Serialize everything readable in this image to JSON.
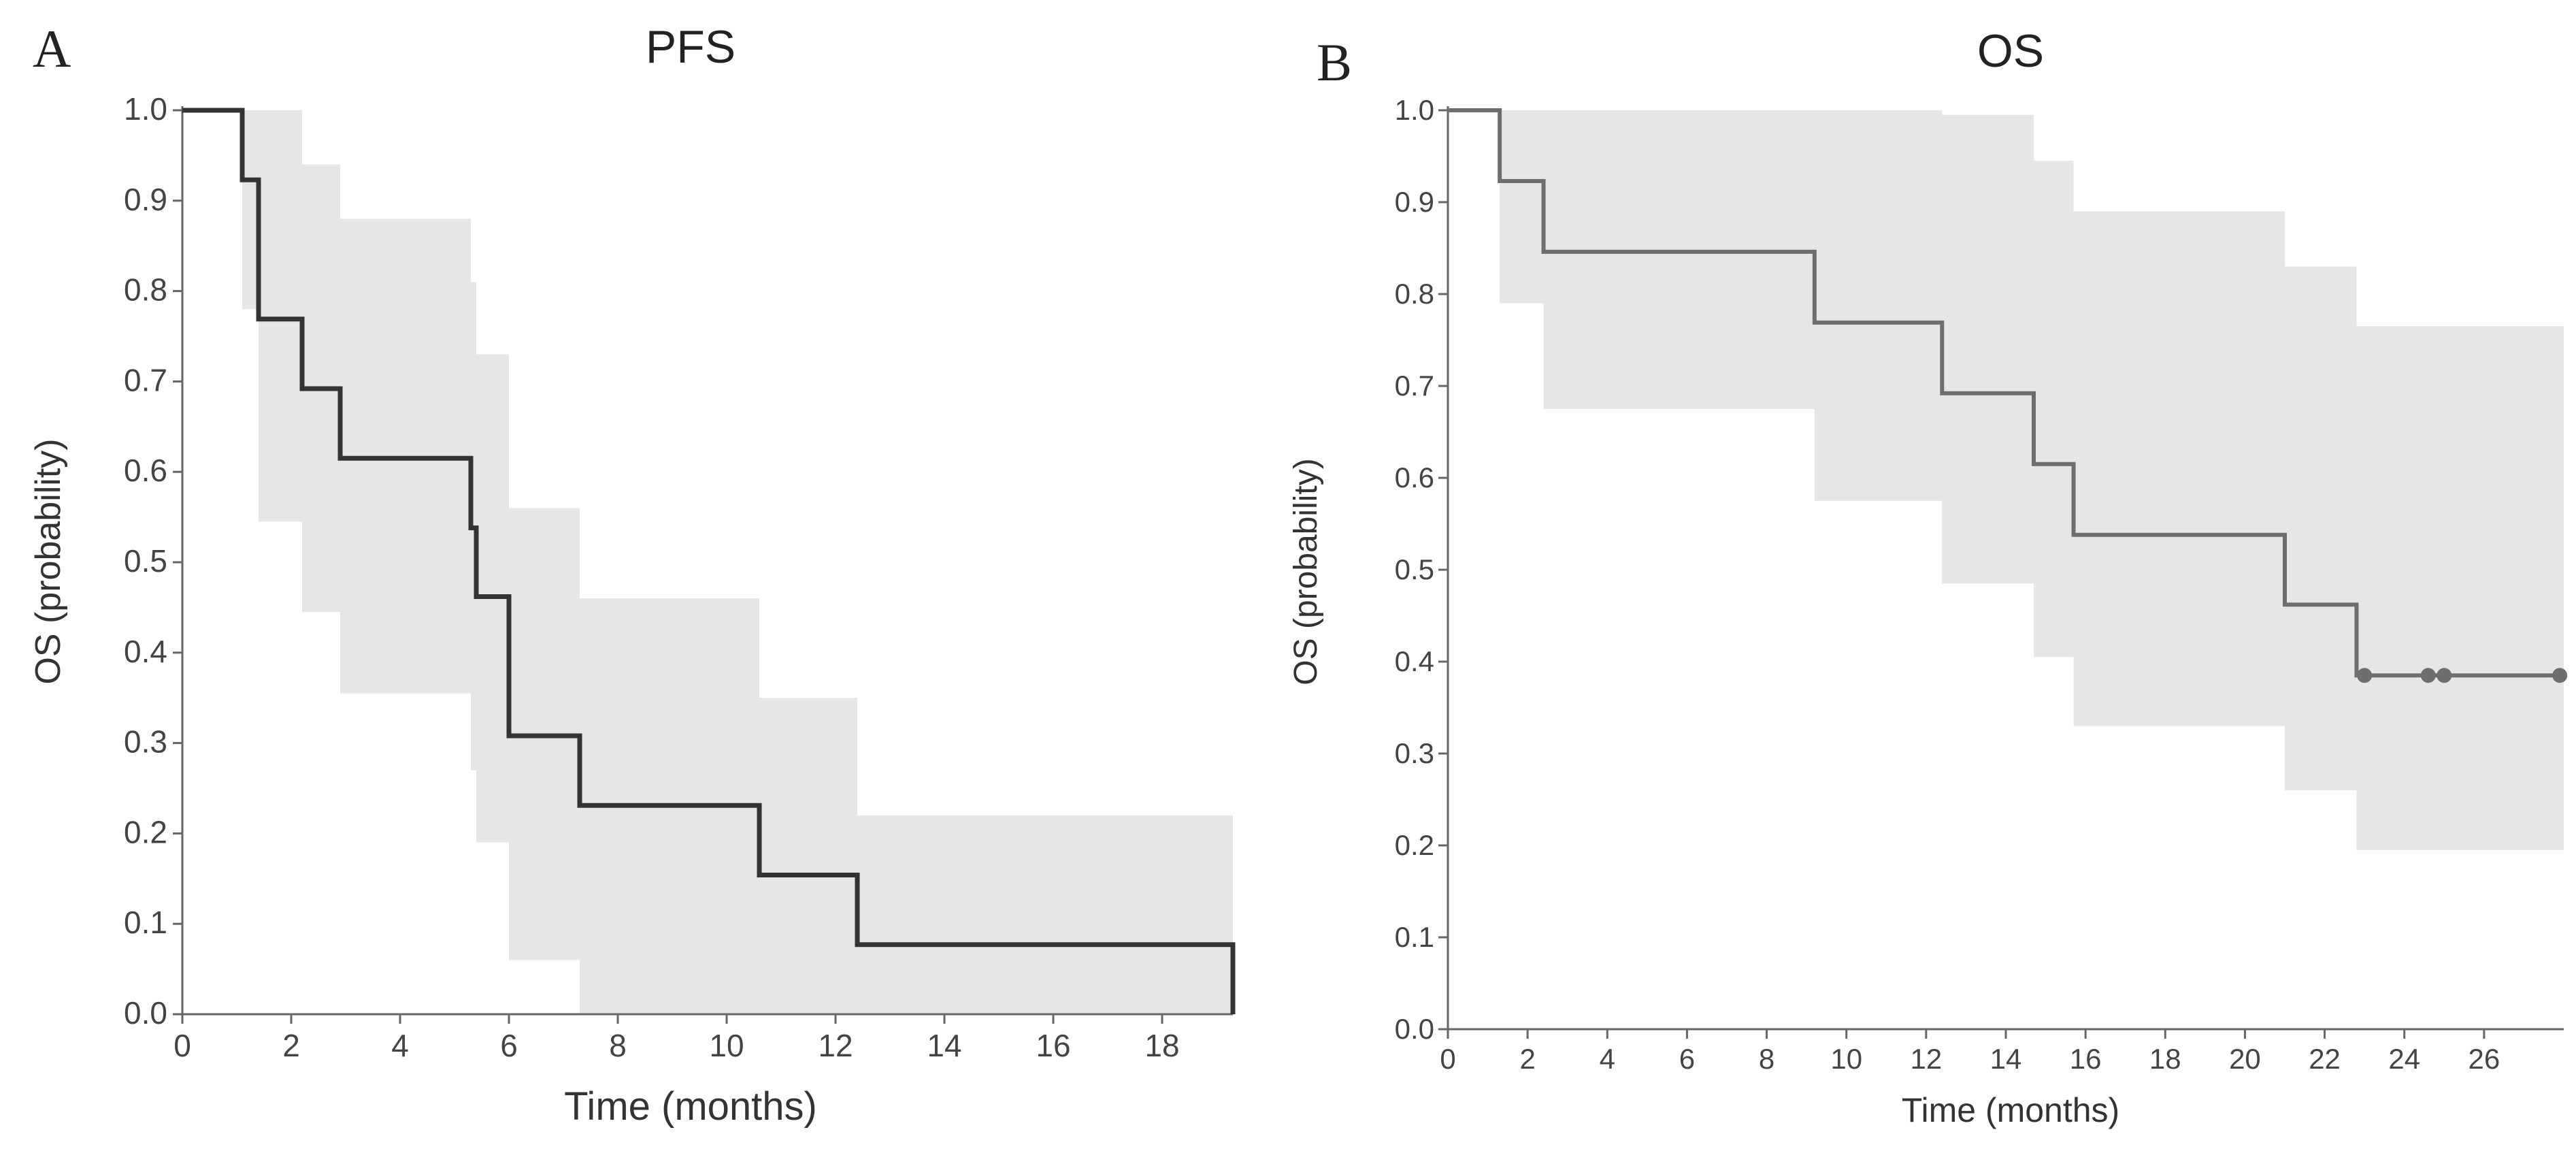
{
  "chart_data": [
    {
      "type": "line",
      "subtype": "kaplan-meier",
      "panel_label": "A",
      "title": "PFS",
      "xlabel": "Time (months)",
      "ylabel": "OS (probability)",
      "xlim": [
        0,
        19.3
      ],
      "ylim": [
        0,
        1.0
      ],
      "xticks": [
        0,
        2,
        4,
        6,
        8,
        10,
        12,
        14,
        16,
        18
      ],
      "xtick_labels": [
        "0",
        "2",
        "4",
        "6",
        "8",
        "10",
        "12",
        "14",
        "16",
        "18"
      ],
      "yticks": [
        0,
        0.1,
        0.2,
        0.3,
        0.4,
        0.5,
        0.6,
        0.7,
        0.8,
        0.9,
        1.0
      ],
      "ytick_labels": [
        "0.0",
        "0.1",
        "0.2",
        "0.3",
        "0.4",
        "0.5",
        "0.6",
        "0.7",
        "0.8",
        "0.9",
        "1.0"
      ],
      "grid": false,
      "line_color": "#333333",
      "band_color": "#e6e6e6",
      "survival": {
        "times": [
          0,
          1.1,
          1.4,
          2.2,
          2.9,
          5.3,
          5.4,
          6.0,
          7.3,
          10.6,
          12.4,
          19.3
        ],
        "values": [
          1.0,
          0.923,
          0.769,
          0.692,
          0.615,
          0.538,
          0.462,
          0.308,
          0.231,
          0.154,
          0.077,
          0.0
        ]
      },
      "ci": {
        "times": [
          0,
          1.1,
          1.4,
          2.2,
          2.9,
          5.3,
          5.4,
          6.0,
          7.3,
          10.6,
          12.4,
          19.3
        ],
        "upper": [
          1.0,
          1.0,
          1.0,
          0.94,
          0.88,
          0.81,
          0.73,
          0.56,
          0.46,
          0.35,
          0.22,
          0.22
        ],
        "lower": [
          1.0,
          0.78,
          0.545,
          0.445,
          0.355,
          0.27,
          0.19,
          0.06,
          0.0,
          0.0,
          0.0,
          0.0
        ]
      },
      "censored": {
        "times": [],
        "values": []
      }
    },
    {
      "type": "line",
      "subtype": "kaplan-meier",
      "panel_label": "B",
      "title": "OS",
      "xlabel": "Time (months)",
      "ylabel": "OS (probability)",
      "xlim": [
        0,
        28
      ],
      "ylim": [
        0,
        1.0
      ],
      "xticks": [
        0,
        2,
        4,
        6,
        8,
        10,
        12,
        14,
        16,
        18,
        20,
        22,
        24,
        26
      ],
      "xtick_labels": [
        "0",
        "2",
        "4",
        "6",
        "8",
        "10",
        "12",
        "14",
        "16",
        "18",
        "20",
        "22",
        "24",
        "26"
      ],
      "yticks": [
        0,
        0.1,
        0.2,
        0.3,
        0.4,
        0.5,
        0.6,
        0.7,
        0.8,
        0.9,
        1.0
      ],
      "ytick_labels": [
        "0.0",
        "0.1",
        "0.2",
        "0.3",
        "0.4",
        "0.5",
        "0.6",
        "0.7",
        "0.8",
        "0.9",
        "1.0"
      ],
      "grid": false,
      "line_color": "#6e6e6e",
      "band_color": "#e6e6e6",
      "survival": {
        "times": [
          0,
          1.3,
          2.4,
          9.2,
          12.4,
          14.7,
          15.7,
          21.0,
          22.8,
          28.0
        ],
        "values": [
          1.0,
          0.923,
          0.846,
          0.769,
          0.692,
          0.615,
          0.538,
          0.462,
          0.385,
          0.385
        ]
      },
      "ci": {
        "times": [
          0,
          1.3,
          2.4,
          9.2,
          12.4,
          14.7,
          15.7,
          21.0,
          22.8,
          28.0
        ],
        "upper": [
          1.0,
          1.0,
          1.0,
          1.0,
          0.995,
          0.945,
          0.89,
          0.83,
          0.765,
          0.765
        ],
        "lower": [
          1.0,
          0.79,
          0.675,
          0.575,
          0.485,
          0.405,
          0.33,
          0.26,
          0.195,
          0.195
        ]
      },
      "censored": {
        "times": [
          23.0,
          24.6,
          25.0,
          27.9
        ],
        "values": [
          0.385,
          0.385,
          0.385,
          0.385
        ]
      }
    }
  ]
}
